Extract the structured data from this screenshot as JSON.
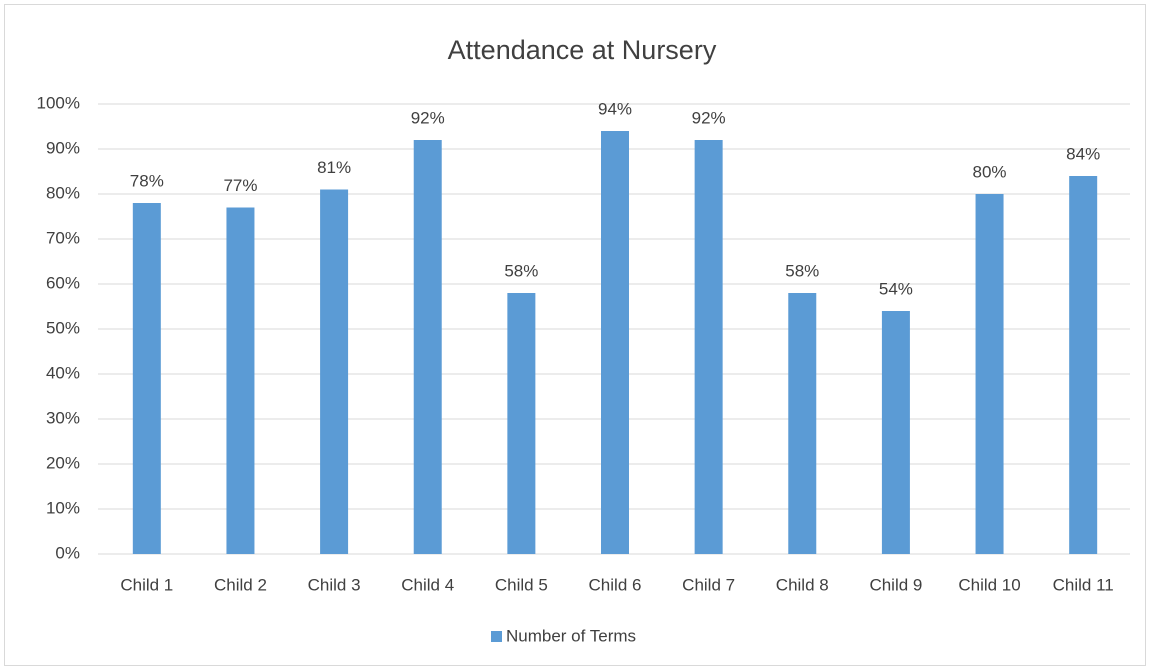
{
  "chart_data": {
    "type": "bar",
    "title": "Attendance at Nursery",
    "categories": [
      "Child 1",
      "Child 2",
      "Child 3",
      "Child 4",
      "Child 5",
      "Child 6",
      "Child 7",
      "Child 8",
      "Child 9",
      "Child 10",
      "Child 11"
    ],
    "series": [
      {
        "name": "Number of Terms",
        "color": "#5b9bd5",
        "values": [
          78,
          77,
          81,
          92,
          58,
          94,
          92,
          58,
          54,
          80,
          84
        ],
        "value_labels": [
          "78%",
          "77%",
          "81%",
          "92%",
          "58%",
          "94%",
          "92%",
          "58%",
          "54%",
          "80%",
          "84%"
        ]
      }
    ],
    "ylim": [
      0,
      100
    ],
    "yticks": [
      {
        "value": 0,
        "label": "0%"
      },
      {
        "value": 10,
        "label": "10%"
      },
      {
        "value": 20,
        "label": "20%"
      },
      {
        "value": 30,
        "label": "30%"
      },
      {
        "value": 40,
        "label": "40%"
      },
      {
        "value": 50,
        "label": "50%"
      },
      {
        "value": 60,
        "label": "60%"
      },
      {
        "value": 70,
        "label": "70%"
      },
      {
        "value": 80,
        "label": "80%"
      },
      {
        "value": 90,
        "label": "90%"
      },
      {
        "value": 100,
        "label": "100%"
      }
    ],
    "grid": true,
    "legend": "bottom"
  }
}
